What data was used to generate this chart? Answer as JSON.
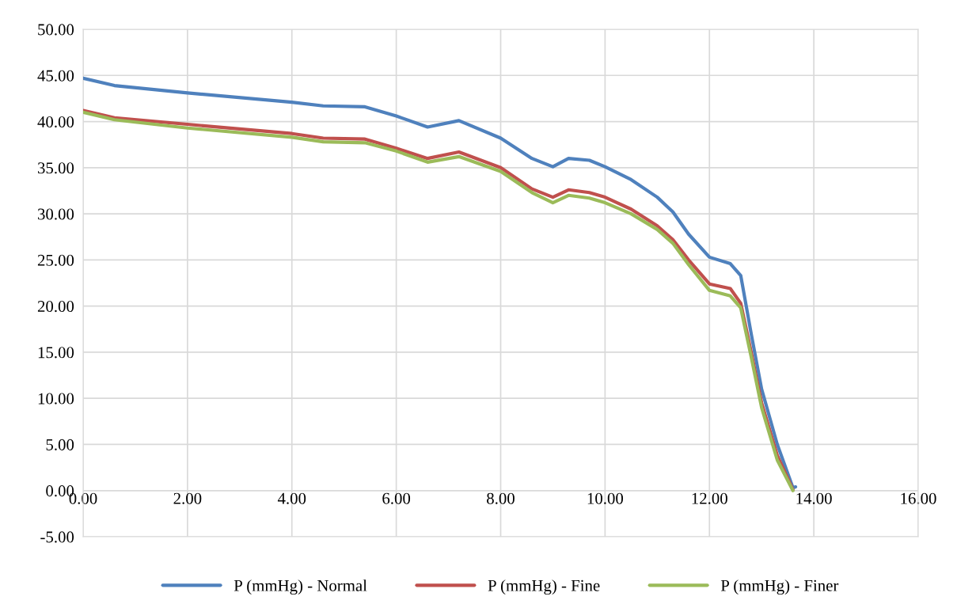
{
  "chart_data": {
    "type": "line",
    "xlim": [
      0,
      16
    ],
    "ylim": [
      -5,
      50
    ],
    "xticks": [
      {
        "value": 0,
        "label": "0.00"
      },
      {
        "value": 2,
        "label": "2.00"
      },
      {
        "value": 4,
        "label": "4.00"
      },
      {
        "value": 6,
        "label": "6.00"
      },
      {
        "value": 8,
        "label": "8.00"
      },
      {
        "value": 10,
        "label": "10.00"
      },
      {
        "value": 12,
        "label": "12.00"
      },
      {
        "value": 14,
        "label": "14.00"
      },
      {
        "value": 16,
        "label": "16.00"
      }
    ],
    "yticks": [
      {
        "value": -5,
        "label": "-5.00"
      },
      {
        "value": 0,
        "label": "0.00"
      },
      {
        "value": 5,
        "label": "5.00"
      },
      {
        "value": 10,
        "label": "10.00"
      },
      {
        "value": 15,
        "label": "15.00"
      },
      {
        "value": 20,
        "label": "20.00"
      },
      {
        "value": 25,
        "label": "25.00"
      },
      {
        "value": 30,
        "label": "30.00"
      },
      {
        "value": 35,
        "label": "35.00"
      },
      {
        "value": 40,
        "label": "40.00"
      },
      {
        "value": 45,
        "label": "45.00"
      },
      {
        "value": 50,
        "label": "50.00"
      }
    ],
    "grid": true,
    "legend": "bottom",
    "marker": "none",
    "line_style": "solid",
    "series": [
      {
        "name": "P (mmHg) - Normal",
        "color": "#4f81bd",
        "x": [
          0,
          0.6,
          2,
          4,
          4.6,
          5.4,
          6,
          6.6,
          7.2,
          8,
          8.6,
          9,
          9.3,
          9.7,
          10,
          10.5,
          11,
          11.3,
          11.6,
          12,
          12.4,
          12.6,
          12.8,
          13,
          13.3,
          13.6,
          13.65
        ],
        "values": [
          44.7,
          43.9,
          43.1,
          42.1,
          41.7,
          41.6,
          40.6,
          39.4,
          40.1,
          38.2,
          36,
          35.1,
          36,
          35.8,
          35.1,
          33.7,
          31.8,
          30.2,
          27.8,
          25.3,
          24.6,
          23.3,
          17,
          11,
          5,
          0.3,
          0.4
        ]
      },
      {
        "name": "P (mmHg) - Fine",
        "color": "#c0504d",
        "x": [
          0,
          0.6,
          2,
          4,
          4.6,
          5.4,
          6,
          6.6,
          7.2,
          8,
          8.6,
          9,
          9.3,
          9.7,
          10,
          10.5,
          11,
          11.3,
          11.6,
          12,
          12.4,
          12.6,
          12.8,
          13,
          13.3,
          13.6
        ],
        "values": [
          41.2,
          40.4,
          39.7,
          38.7,
          38.2,
          38.1,
          37.1,
          36,
          36.7,
          35,
          32.7,
          31.8,
          32.6,
          32.3,
          31.8,
          30.5,
          28.7,
          27.2,
          25,
          22.4,
          21.9,
          20.3,
          15,
          9.5,
          3.8,
          0.1
        ]
      },
      {
        "name": "P (mmHg) - Finer",
        "color": "#9bbb59",
        "x": [
          0,
          0.6,
          2,
          4,
          4.6,
          5.4,
          6,
          6.6,
          7.2,
          8,
          8.6,
          9,
          9.3,
          9.7,
          10,
          10.5,
          11,
          11.3,
          11.6,
          12,
          12.4,
          12.6,
          12.8,
          13,
          13.3,
          13.6
        ],
        "values": [
          41,
          40.2,
          39.3,
          38.3,
          37.8,
          37.7,
          36.8,
          35.6,
          36.2,
          34.6,
          32.3,
          31.2,
          32,
          31.7,
          31.2,
          30,
          28.3,
          26.8,
          24.5,
          21.7,
          21.1,
          19.8,
          14.5,
          9,
          3.3,
          0
        ]
      }
    ]
  }
}
